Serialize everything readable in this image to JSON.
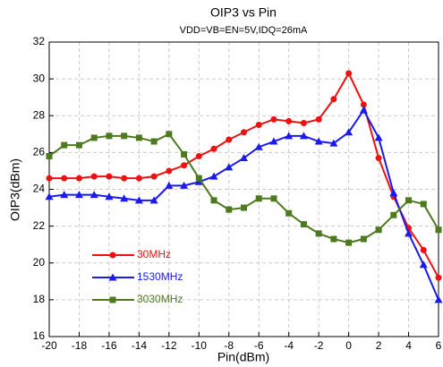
{
  "chart_data": {
    "type": "line",
    "title": "OIP3 vs Pin",
    "subtitle": "VDD=VB=EN=5V,IDQ=26mA",
    "x_label": "Pin(dBm)",
    "y_label": "OIP3(dBm)",
    "x": [
      -20,
      -19,
      -18,
      -17,
      -16,
      -15,
      -14,
      -13,
      -12,
      -11,
      -10,
      -9,
      -8,
      -7,
      -6,
      -5,
      -4,
      -3,
      -2,
      -1,
      0,
      1,
      2,
      3,
      4,
      5,
      6
    ],
    "series": [
      {
        "name": "30MHz",
        "color": "#ee1111",
        "marker": "circle",
        "values": [
          24.6,
          24.6,
          24.6,
          24.7,
          24.7,
          24.6,
          24.6,
          24.7,
          25.0,
          25.3,
          25.8,
          26.2,
          26.7,
          27.1,
          27.5,
          27.8,
          27.7,
          27.6,
          27.8,
          28.9,
          30.3,
          28.6,
          25.7,
          23.6,
          21.9,
          20.7,
          19.2
        ]
      },
      {
        "name": "1530MHz",
        "color": "#1a1aee",
        "marker": "triangle",
        "values": [
          23.6,
          23.7,
          23.7,
          23.7,
          23.6,
          23.5,
          23.4,
          23.4,
          24.2,
          24.2,
          24.4,
          24.7,
          25.2,
          25.7,
          26.3,
          26.6,
          26.9,
          26.9,
          26.6,
          26.5,
          27.1,
          28.3,
          26.8,
          23.8,
          21.6,
          19.9,
          18.0
        ]
      },
      {
        "name": "3030MHz",
        "color": "#4d7a1e",
        "marker": "square",
        "values": [
          25.8,
          26.4,
          26.4,
          26.8,
          26.9,
          26.9,
          26.8,
          26.6,
          27.0,
          25.9,
          24.6,
          23.4,
          22.9,
          23.0,
          23.5,
          23.5,
          22.7,
          22.1,
          21.6,
          21.3,
          21.1,
          21.3,
          21.8,
          22.6,
          23.4,
          23.2,
          21.8
        ]
      }
    ],
    "xlim": [
      -20,
      6
    ],
    "ylim": [
      16,
      32
    ],
    "xticks": [
      -20,
      -18,
      -16,
      -14,
      -12,
      -10,
      -8,
      -6,
      -4,
      -2,
      0,
      2,
      4,
      6
    ],
    "yticks": [
      16,
      18,
      20,
      22,
      24,
      26,
      28,
      30,
      32
    ],
    "grid": true,
    "legend": "lower left"
  }
}
